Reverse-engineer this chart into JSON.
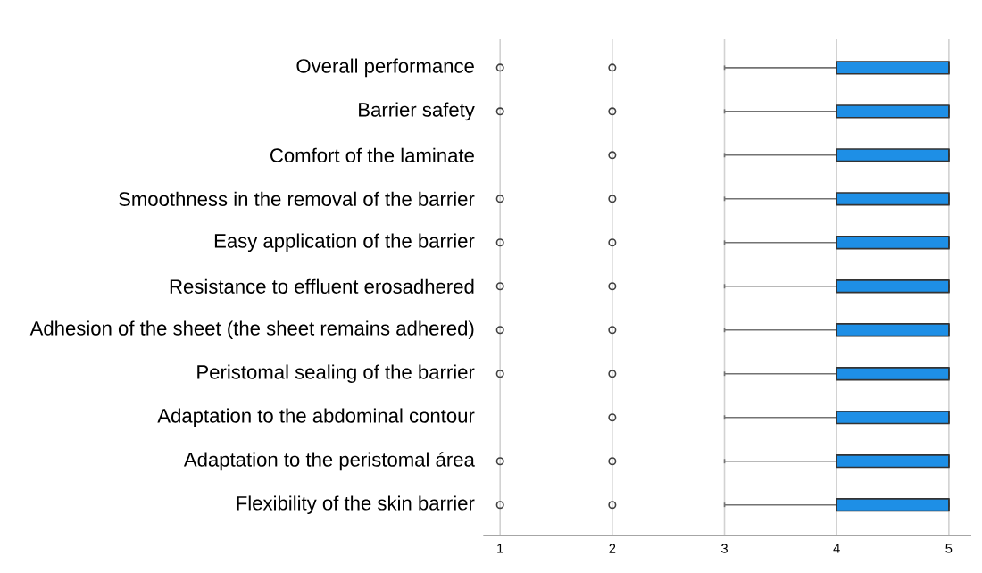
{
  "chart_data": {
    "type": "box",
    "orientation": "horizontal",
    "color": "#1e8fe6",
    "categories": [
      "Overall performance",
      "Barrier safety",
      "Comfort of the laminate",
      "Smoothness in the removal of the barrier",
      "Easy application of the barrier",
      "Resistance to effluent erosadhered",
      "Adhesion of the sheet (the sheet remains adhered)",
      "Peristomal sealing of the barrier",
      "Adaptation to the abdominal contour",
      "Adaptation to the peristomal área",
      "Flexibility of the skin barrier"
    ],
    "boxes": [
      {
        "low": 3,
        "q1": 4,
        "median": 5,
        "q3": 5,
        "high": 5,
        "outliers": [
          1,
          2
        ]
      },
      {
        "low": 3,
        "q1": 4,
        "median": 5,
        "q3": 5,
        "high": 5,
        "outliers": [
          1,
          2
        ]
      },
      {
        "low": 3,
        "q1": 4,
        "median": 5,
        "q3": 5,
        "high": 5,
        "outliers": [
          2
        ]
      },
      {
        "low": 3,
        "q1": 4,
        "median": 5,
        "q3": 5,
        "high": 5,
        "outliers": [
          1,
          2
        ]
      },
      {
        "low": 3,
        "q1": 4,
        "median": 5,
        "q3": 5,
        "high": 5,
        "outliers": [
          1,
          2
        ]
      },
      {
        "low": 3,
        "q1": 4,
        "median": 5,
        "q3": 5,
        "high": 5,
        "outliers": [
          1,
          2
        ]
      },
      {
        "low": 3,
        "q1": 4,
        "median": 5,
        "q3": 5,
        "high": 5,
        "outliers": [
          1,
          2
        ]
      },
      {
        "low": 3,
        "q1": 4,
        "median": 5,
        "q3": 5,
        "high": 5,
        "outliers": [
          1,
          2
        ]
      },
      {
        "low": 3,
        "q1": 4,
        "median": 5,
        "q3": 5,
        "high": 5,
        "outliers": [
          2
        ]
      },
      {
        "low": 3,
        "q1": 4,
        "median": 5,
        "q3": 5,
        "high": 5,
        "outliers": [
          1,
          2
        ]
      },
      {
        "low": 3,
        "q1": 4,
        "median": 5,
        "q3": 5,
        "high": 5,
        "outliers": [
          1,
          2
        ]
      }
    ],
    "xlim": [
      0.85,
      5.2
    ],
    "xticks": [
      1,
      2,
      3,
      4,
      5
    ],
    "grid": "x"
  }
}
